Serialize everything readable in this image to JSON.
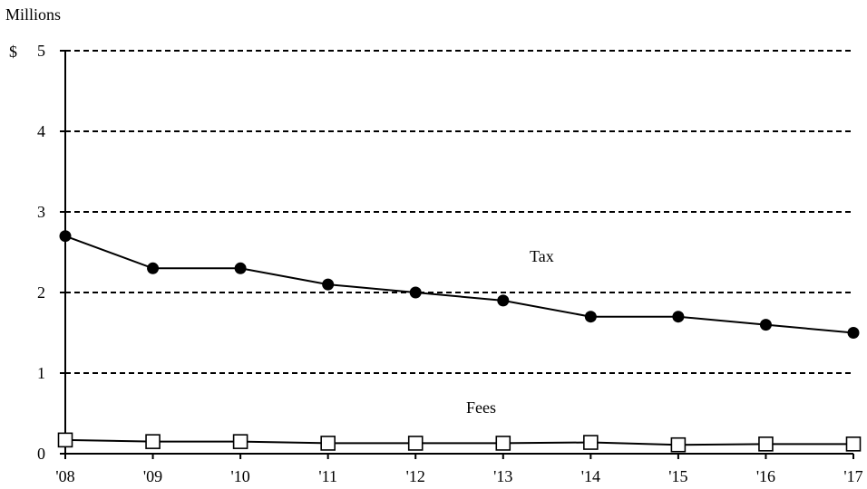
{
  "chart_data": {
    "type": "line",
    "y_unit_label": "Millions",
    "y_currency_prefix": "$",
    "categories": [
      "'08",
      "'09",
      "'10",
      "'11",
      "'12",
      "'13",
      "'14",
      "'15",
      "'16",
      "'17"
    ],
    "ylim": [
      0,
      5
    ],
    "yticks": [
      0,
      1,
      2,
      3,
      4,
      5
    ],
    "ytick_labels": [
      "0",
      "1",
      "2",
      "3",
      "4",
      "5"
    ],
    "grid": true,
    "series": [
      {
        "name": "Tax",
        "marker": "filled-circle",
        "values": [
          2.7,
          2.3,
          2.3,
          2.1,
          2.0,
          1.9,
          1.7,
          1.7,
          1.6,
          1.5
        ]
      },
      {
        "name": "Fees",
        "marker": "open-square",
        "values": [
          0.17,
          0.15,
          0.15,
          0.13,
          0.13,
          0.13,
          0.14,
          0.11,
          0.12,
          0.12
        ]
      }
    ],
    "colors": {
      "line": "#000000",
      "grid": "#000000",
      "background": "#ffffff"
    }
  }
}
